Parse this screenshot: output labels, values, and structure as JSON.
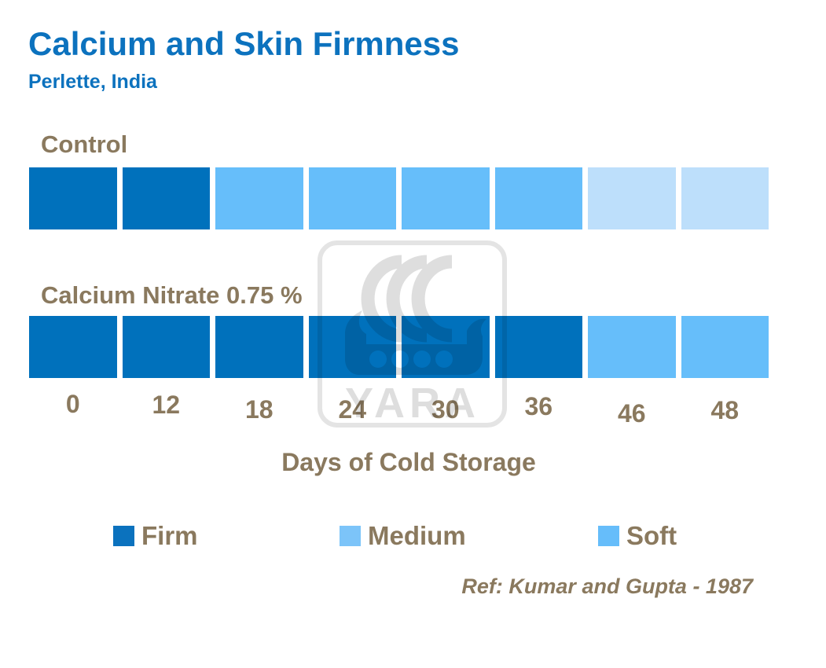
{
  "header": {
    "title": "Calcium and Skin Firmness",
    "subtitle": "Perlette, India"
  },
  "colors": {
    "firm": "#0071BC",
    "medium": "#66BEFA",
    "soft": "#BDDFFB",
    "legend_firm": "#0B72BE",
    "legend_medium": "#7CC4F9",
    "legend_soft": "#66BDFA",
    "title_blue": "#0C72BE",
    "text_brown": "#8A795E"
  },
  "rows": [
    {
      "label": "Control",
      "segments": [
        "firm",
        "firm",
        "medium",
        "medium",
        "medium",
        "medium",
        "soft",
        "soft"
      ]
    },
    {
      "label": "Calcium Nitrate 0.75 %",
      "segments": [
        "firm",
        "firm",
        "firm",
        "firm",
        "firm",
        "firm",
        "medium",
        "medium"
      ]
    }
  ],
  "x_axis": {
    "title": "Days of Cold Storage",
    "labels": [
      "0",
      "12",
      "18",
      "24",
      "30",
      "36",
      "46",
      "48"
    ]
  },
  "legend": {
    "items": [
      {
        "label": "Firm",
        "color_key": "legend_firm"
      },
      {
        "label": "Medium",
        "color_key": "legend_medium"
      },
      {
        "label": "Soft",
        "color_key": "legend_soft"
      }
    ]
  },
  "footer": {
    "reference": "Ref: Kumar and Gupta - 1987"
  },
  "watermark": {
    "name": "yara-logo",
    "text": "YARA"
  },
  "chart_data": {
    "type": "bar",
    "title": "Calcium and Skin Firmness",
    "subtitle": "Perlette, India",
    "xlabel": "Days of Cold Storage",
    "categories": [
      0,
      12,
      18,
      24,
      30,
      36,
      46,
      48
    ],
    "series": [
      {
        "name": "Control",
        "values": [
          "Firm",
          "Firm",
          "Medium",
          "Medium",
          "Medium",
          "Medium",
          "Soft",
          "Soft"
        ]
      },
      {
        "name": "Calcium Nitrate 0.75 %",
        "values": [
          "Firm",
          "Firm",
          "Firm",
          "Firm",
          "Firm",
          "Firm",
          "Medium",
          "Medium"
        ]
      }
    ],
    "value_colors": {
      "Firm": "#0071BC",
      "Medium": "#66BEFA",
      "Soft": "#BDDFFB"
    },
    "legend_entries": [
      "Firm",
      "Medium",
      "Soft"
    ],
    "legend_position": "bottom",
    "grid": false,
    "annotations": [
      "Ref: Kumar and Gupta - 1987"
    ]
  }
}
